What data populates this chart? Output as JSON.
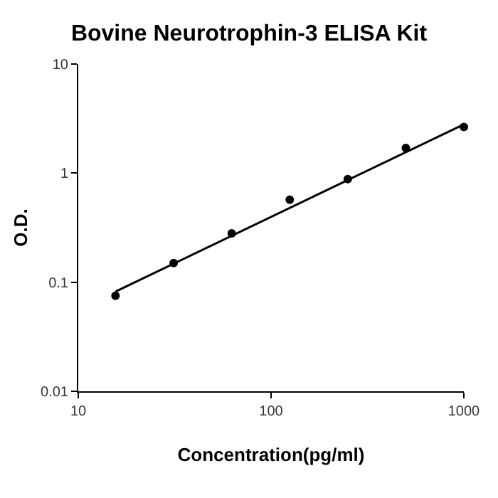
{
  "chart_data": {
    "type": "scatter",
    "title": "Bovine Neurotrophin-3 ELISA Kit",
    "xlabel": "Concentration(pg/ml)",
    "ylabel": "O.D.",
    "log": "xy",
    "grid": false,
    "marker": "circle",
    "xlim": [
      10,
      1000
    ],
    "xticks": [
      10,
      100,
      1000
    ],
    "ylim": [
      0.01,
      10
    ],
    "yticks": [
      0.01,
      0.1,
      1,
      10
    ],
    "series": [
      {
        "color": "#000000",
        "x": [
          15.6,
          31.25,
          62.5,
          125,
          250,
          500,
          1000
        ],
        "values": [
          0.075,
          0.15,
          0.28,
          0.57,
          0.88,
          1.7,
          2.65
        ]
      },
      {
        "type": "line",
        "color": "#000000",
        "marker": "none",
        "line_style": "solid",
        "x": [
          15.6,
          1000
        ],
        "values": [
          0.082,
          2.8
        ]
      }
    ]
  }
}
